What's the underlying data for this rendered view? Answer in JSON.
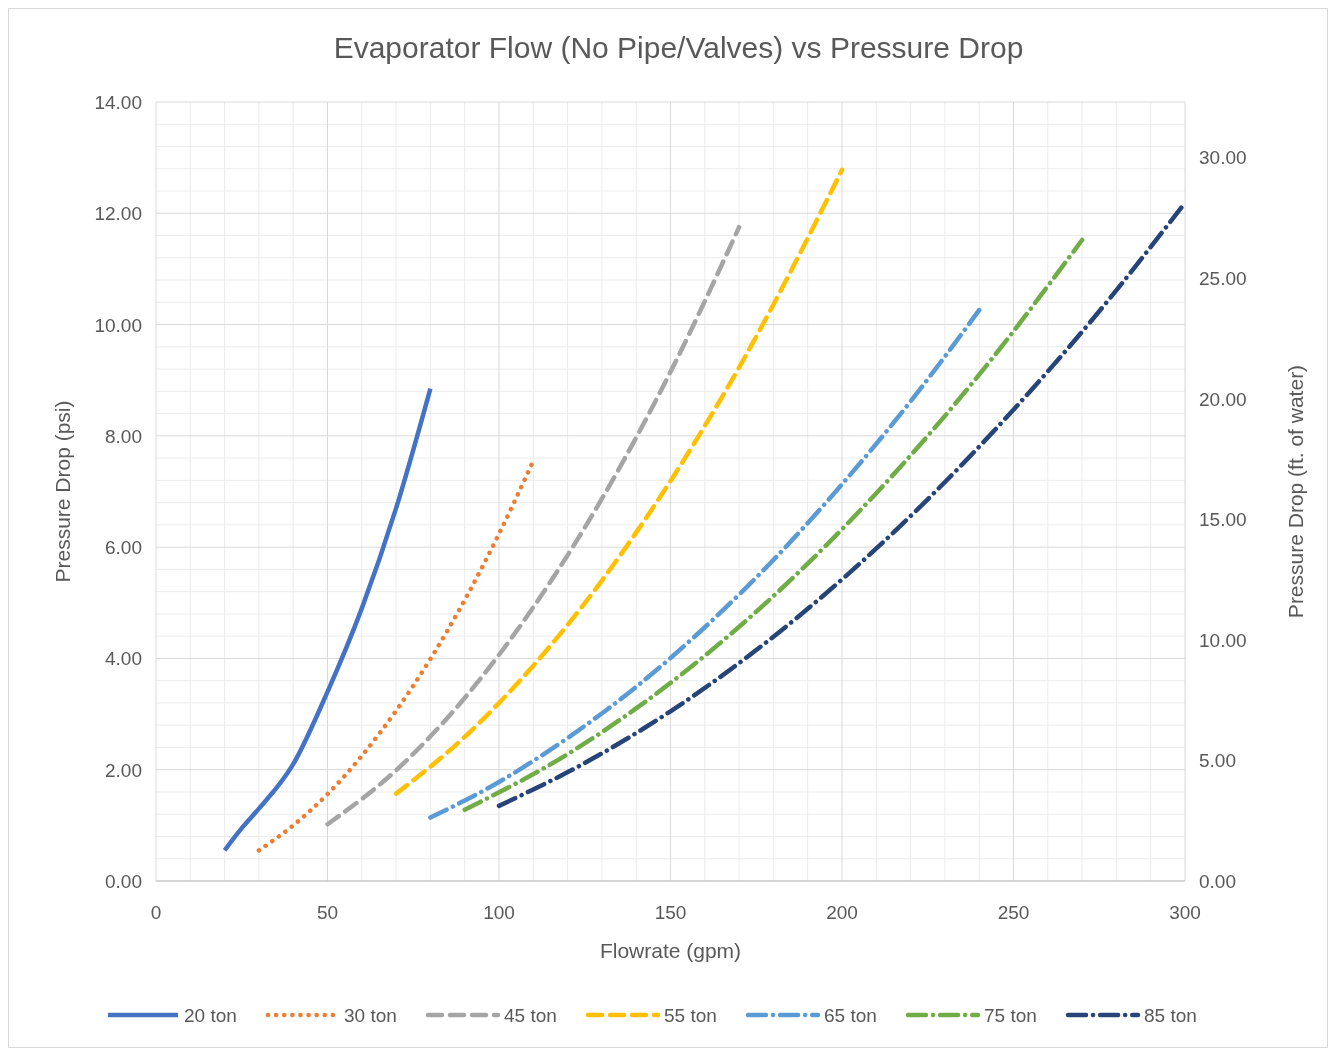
{
  "chart_data": {
    "type": "line",
    "title": "Evaporator Flow (No Pipe/Valves) vs Pressure Drop",
    "xlabel": "Flowrate (gpm)",
    "ylabel": "Pressure Drop (psi)",
    "y2label": "Pressure Drop (ft. of water)",
    "xlim": [
      0,
      300
    ],
    "xticks": [
      0,
      50,
      100,
      150,
      200,
      250,
      300
    ],
    "ylim": [
      0,
      14
    ],
    "yticks": [
      {
        "value": 0,
        "label": "0.00"
      },
      {
        "value": 2,
        "label": "2.00"
      },
      {
        "value": 4,
        "label": "4.00"
      },
      {
        "value": 6,
        "label": "6.00"
      },
      {
        "value": 8,
        "label": "8.00"
      },
      {
        "value": 10,
        "label": "10.00"
      },
      {
        "value": 12,
        "label": "12.00"
      },
      {
        "value": 14,
        "label": "14.00"
      }
    ],
    "y2lim": [
      0,
      32.3
    ],
    "y2ticks": [
      {
        "value": 0,
        "label": "0.00"
      },
      {
        "value": 5,
        "label": "5.00"
      },
      {
        "value": 10,
        "label": "10.00"
      },
      {
        "value": 15,
        "label": "15.00"
      },
      {
        "value": 20,
        "label": "20.00"
      },
      {
        "value": 25,
        "label": "25.00"
      },
      {
        "value": 30,
        "label": "30.00"
      }
    ],
    "grid": true,
    "legend": "bottom",
    "series": [
      {
        "name": "20 ton",
        "color": "#4472c4",
        "line_style": "solid",
        "x": [
          20,
          25,
          30,
          40,
          50,
          60,
          70,
          80
        ],
        "values": [
          0.55,
          0.95,
          1.3,
          2.1,
          3.4,
          4.9,
          6.7,
          8.85
        ]
      },
      {
        "name": "30 ton",
        "color": "#ed7d31",
        "line_style": "dotted",
        "x": [
          30,
          40,
          50,
          60,
          70,
          80,
          90,
          100,
          110
        ],
        "values": [
          0.55,
          1.0,
          1.56,
          2.25,
          3.06,
          3.99,
          5.05,
          6.24,
          7.55
        ]
      },
      {
        "name": "45 ton",
        "color": "#a5a5a5",
        "line_style": "dashed",
        "x": [
          50,
          70,
          90,
          110,
          130,
          150,
          170
        ],
        "values": [
          1.02,
          1.99,
          3.29,
          4.92,
          6.87,
          9.15,
          11.75
        ]
      },
      {
        "name": "55 ton",
        "color": "#ffc000",
        "line_style": "dashed",
        "x": [
          70,
          90,
          110,
          130,
          150,
          170,
          200
        ],
        "values": [
          1.57,
          2.59,
          3.87,
          5.4,
          7.19,
          9.23,
          12.78
        ]
      },
      {
        "name": "65 ton",
        "color": "#5b9bd5",
        "line_style": "dashdot",
        "x": [
          80,
          100,
          120,
          140,
          160,
          180,
          200,
          220,
          240
        ],
        "values": [
          1.14,
          1.78,
          2.57,
          3.49,
          4.56,
          5.77,
          7.13,
          8.62,
          10.26
        ]
      },
      {
        "name": "75 ton",
        "color": "#70ad47",
        "line_style": "dashdot",
        "x": [
          90,
          120,
          150,
          180,
          210,
          240,
          270
        ],
        "values": [
          1.28,
          2.28,
          3.56,
          5.12,
          6.97,
          9.1,
          11.52
        ]
      },
      {
        "name": "85 ton",
        "color": "#264478",
        "line_style": "dashdot",
        "x": [
          100,
          125,
          150,
          175,
          200,
          225,
          250,
          275,
          300
        ],
        "values": [
          1.35,
          2.12,
          3.05,
          4.15,
          5.42,
          6.86,
          8.47,
          10.24,
          12.19
        ]
      }
    ]
  }
}
